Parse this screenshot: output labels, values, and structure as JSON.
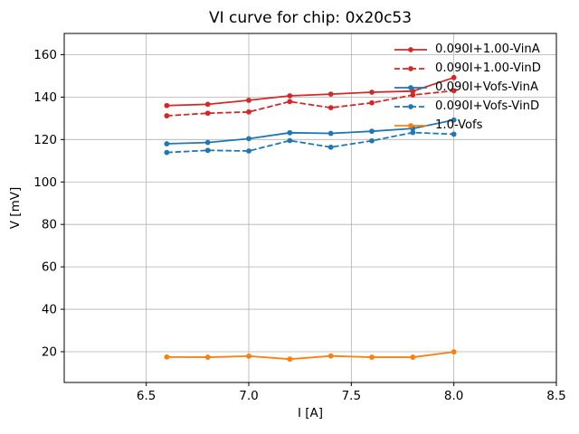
{
  "figure": {
    "title": "VI curve for chip: 0x20c53"
  },
  "chart_data": {
    "type": "line",
    "title": "VI curve for chip: 0x20c53",
    "xlabel": "I [A]",
    "ylabel": "V [mV]",
    "xlim": [
      6.1,
      8.5
    ],
    "ylim": [
      5.5,
      170
    ],
    "xtick_values": [
      6.5,
      7.0,
      7.5,
      8.0,
      8.5
    ],
    "xtick_labels": [
      "6.5",
      "7.0",
      "7.5",
      "8.0",
      "8.5"
    ],
    "ytick_values": [
      20,
      40,
      60,
      80,
      100,
      120,
      140,
      160
    ],
    "ytick_labels": [
      "20",
      "40",
      "60",
      "80",
      "100",
      "120",
      "140",
      "160"
    ],
    "grid": true,
    "legend": {
      "position": "upper right",
      "frame": false
    },
    "x": [
      6.6,
      6.8,
      7.0,
      7.2,
      7.4,
      7.6,
      7.8,
      8.0
    ],
    "series": [
      {
        "name": "0.090I+1.00-VinA",
        "color": "#d62728",
        "style": "solid",
        "values": [
          136.0,
          136.6,
          138.5,
          140.6,
          141.4,
          142.3,
          142.8,
          149.2
        ]
      },
      {
        "name": "0.090I+1.00-VinD",
        "color": "#d62728",
        "style": "dashed",
        "values": [
          131.2,
          132.4,
          133.0,
          137.9,
          135.0,
          137.3,
          141.0,
          143.0
        ]
      },
      {
        "name": "0.090I+Vofs-VinA",
        "color": "#1f77b4",
        "style": "solid",
        "values": [
          118.0,
          118.6,
          120.4,
          123.2,
          122.9,
          123.9,
          125.2,
          129.2
        ]
      },
      {
        "name": "0.090I+Vofs-VinD",
        "color": "#1f77b4",
        "style": "dashed",
        "values": [
          113.9,
          114.9,
          114.6,
          119.5,
          116.4,
          119.4,
          123.3,
          122.5
        ]
      },
      {
        "name": "1.0-Vofs",
        "color": "#ff7f0e",
        "style": "solid",
        "values": [
          17.5,
          17.4,
          17.9,
          16.5,
          18.0,
          17.4,
          17.4,
          19.9
        ]
      }
    ],
    "colors": {
      "grid": "#b0b0b0",
      "spine": "#000000",
      "background": "#ffffff"
    }
  }
}
